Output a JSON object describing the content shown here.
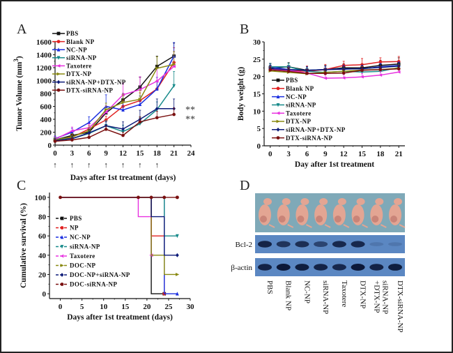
{
  "figure": {
    "panels": [
      "A",
      "B",
      "C",
      "D"
    ]
  },
  "series_colors": {
    "PBS": "#111111",
    "Blank NP": "#e02020",
    "NC-NP": "#1a2ee0",
    "siRNA-NP": "#178a8a",
    "Taxotere": "#e832e0",
    "DTX-NP": "#8a8a12",
    "siRNA-NP+DTX-NP": "#0c1a78",
    "DTX-siRNA-NP": "#7a1010"
  },
  "chart_data": [
    {
      "panel": "A",
      "type": "line",
      "title": "",
      "xlabel": "Days after 1st treatment (days)",
      "ylabel": "Tumor Volume (mm3)",
      "xlim": [
        0,
        24
      ],
      "ylim": [
        0,
        1600
      ],
      "xticks": [
        0,
        3,
        6,
        9,
        12,
        15,
        18,
        21,
        24
      ],
      "yticks": [
        0,
        200,
        400,
        600,
        800,
        1000,
        1200,
        1400,
        1600
      ],
      "treatment_days": [
        0,
        3,
        6,
        9,
        12,
        15,
        18
      ],
      "treatment_marker": "↑",
      "annotations": [
        {
          "text": "**",
          "y": 570
        },
        {
          "text": "**",
          "y": 420
        }
      ],
      "legend": "top-left",
      "x": [
        0,
        3,
        6,
        9,
        12,
        15,
        18,
        21
      ],
      "series": [
        {
          "name": "PBS",
          "marker": "square",
          "values": [
            80,
            150,
            200,
            500,
            700,
            900,
            1220,
            1380
          ],
          "errors": [
            40,
            40,
            50,
            80,
            100,
            150,
            160,
            200
          ]
        },
        {
          "name": "Blank NP",
          "marker": "circle",
          "values": [
            75,
            120,
            250,
            390,
            600,
            690,
            870,
            1280
          ],
          "errors": [
            30,
            40,
            60,
            60,
            90,
            120,
            130,
            230
          ]
        },
        {
          "name": "NC-NP",
          "marker": "triangle-up",
          "values": [
            100,
            200,
            350,
            600,
            545,
            630,
            870,
            1380
          ],
          "errors": [
            40,
            60,
            90,
            180,
            120,
            130,
            180,
            210
          ]
        },
        {
          "name": "siRNA-NP",
          "marker": "triangle-down",
          "values": [
            90,
            100,
            180,
            300,
            210,
            330,
            550,
            920
          ],
          "errors": [
            40,
            40,
            50,
            80,
            100,
            100,
            120,
            220
          ]
        },
        {
          "name": "Taxotere",
          "marker": "triangle-left",
          "values": [
            90,
            220,
            270,
            510,
            780,
            860,
            990,
            1220
          ],
          "errors": [
            40,
            60,
            60,
            100,
            180,
            200,
            200,
            230
          ]
        },
        {
          "name": "DTX-NP",
          "marker": "triangle-right",
          "values": [
            80,
            130,
            220,
            550,
            660,
            710,
            1190,
            1250
          ],
          "errors": [
            30,
            50,
            60,
            100,
            120,
            140,
            180,
            200
          ]
        },
        {
          "name": "siRNA-NP+DTX-NP",
          "marker": "diamond",
          "values": [
            70,
            100,
            190,
            300,
            250,
            400,
            565,
            565
          ],
          "errors": [
            30,
            40,
            50,
            60,
            110,
            140,
            150,
            150
          ]
        },
        {
          "name": "DTX-siRNA-NP",
          "marker": "circle",
          "values": [
            60,
            80,
            120,
            245,
            150,
            360,
            425,
            475
          ],
          "errors": [
            20,
            30,
            40,
            50,
            50,
            80,
            100,
            100
          ]
        }
      ]
    },
    {
      "panel": "B",
      "type": "line",
      "title": "",
      "xlabel": "Day after 1st treatment",
      "ylabel": "Body weight (g)",
      "xlim": [
        -1,
        22
      ],
      "ylim": [
        0,
        30
      ],
      "xticks": [
        0,
        3,
        6,
        9,
        12,
        15,
        18,
        21
      ],
      "yticks": [
        0,
        5,
        10,
        15,
        20,
        25,
        30
      ],
      "legend": "center-left",
      "x": [
        0,
        3,
        6,
        9,
        12,
        15,
        18,
        21
      ],
      "series": [
        {
          "name": "PBS",
          "marker": "square",
          "values": [
            22.5,
            22.8,
            21.8,
            22.0,
            22.5,
            22.5,
            23.2,
            23.6
          ],
          "errors": [
            1.2,
            1.2,
            1.2,
            1.2,
            1.2,
            1.2,
            1.5,
            1.8
          ]
        },
        {
          "name": "Blank NP",
          "marker": "circle",
          "values": [
            22.3,
            21.8,
            21.5,
            22.0,
            23.2,
            23.4,
            24.2,
            24.3
          ],
          "errors": [
            1.5,
            1.2,
            1.5,
            1.5,
            1.2,
            1.8,
            1.2,
            1.5
          ]
        },
        {
          "name": "NC-NP",
          "marker": "triangle-up",
          "values": [
            22.8,
            22.0,
            21.8,
            22.0,
            22.2,
            22.2,
            22.8,
            23.2
          ],
          "errors": [
            1,
            1,
            1,
            1,
            1,
            1,
            1,
            1
          ]
        },
        {
          "name": "siRNA-NP",
          "marker": "triangle-down",
          "values": [
            22.8,
            22.8,
            21.5,
            21.2,
            21.5,
            21.3,
            21.5,
            22.6
          ],
          "errors": [
            1,
            1,
            1,
            1,
            1,
            1,
            1,
            1
          ]
        },
        {
          "name": "Taxotere",
          "marker": "triangle-left",
          "values": [
            22.0,
            21.8,
            21.0,
            19.5,
            19.6,
            19.9,
            20.4,
            21.3
          ],
          "errors": [
            1,
            1,
            1,
            1,
            1,
            1,
            1,
            1
          ]
        },
        {
          "name": "DTX-NP",
          "marker": "triangle-right",
          "values": [
            21.6,
            21.2,
            20.8,
            21.2,
            21.5,
            21.9,
            22.0,
            22.4
          ],
          "errors": [
            1,
            1,
            1,
            1,
            1,
            1,
            1,
            1
          ]
        },
        {
          "name": "siRNA-NP+DTX-NP",
          "marker": "diamond",
          "values": [
            22.3,
            22.0,
            21.8,
            22.0,
            22.1,
            22.3,
            22.6,
            23.0
          ],
          "errors": [
            1,
            1,
            1,
            1,
            1,
            1,
            1,
            1
          ]
        },
        {
          "name": "DTX-siRNA-NP",
          "marker": "circle",
          "values": [
            21.9,
            21.5,
            20.9,
            20.9,
            21.0,
            21.8,
            22.0,
            22.2
          ],
          "errors": [
            1,
            1,
            1,
            1,
            1,
            1,
            1,
            1
          ]
        }
      ]
    },
    {
      "panel": "C",
      "type": "line",
      "subtype": "step",
      "title": "",
      "xlabel": "Days after 1st treatment (days)",
      "ylabel": "Cumulative survival (%)",
      "xlim": [
        -2.5,
        30
      ],
      "ylim": [
        -5,
        105
      ],
      "xticks": [
        0,
        5,
        10,
        15,
        20,
        25,
        30
      ],
      "yticks": [
        0,
        20,
        40,
        60,
        80,
        100
      ],
      "legend": "center-left",
      "series": [
        {
          "name": "PBS",
          "marker": "square",
          "points": [
            [
              0,
              100
            ],
            [
              21,
              100
            ],
            [
              21,
              0
            ],
            [
              24,
              0
            ]
          ]
        },
        {
          "name": "NP",
          "marker": "circle",
          "points": [
            [
              0,
              100
            ],
            [
              21,
              100
            ],
            [
              21,
              60
            ],
            [
              24,
              60
            ],
            [
              24,
              0
            ]
          ]
        },
        {
          "name": "NC-NP",
          "marker": "triangle-up",
          "points": [
            [
              0,
              100
            ],
            [
              24,
              100
            ],
            [
              24,
              0
            ],
            [
              27,
              0
            ]
          ]
        },
        {
          "name": "siRNA-NP",
          "marker": "triangle-down",
          "points": [
            [
              0,
              100
            ],
            [
              24,
              100
            ],
            [
              24,
              60
            ],
            [
              27,
              60
            ]
          ]
        },
        {
          "name": "Taxotere",
          "marker": "triangle-left",
          "points": [
            [
              0,
              100
            ],
            [
              18,
              100
            ],
            [
              18,
              80
            ],
            [
              21,
              80
            ],
            [
              21,
              40
            ]
          ]
        },
        {
          "name": "DOC-NP",
          "marker": "triangle-right",
          "points": [
            [
              0,
              100
            ],
            [
              21,
              100
            ],
            [
              21,
              40
            ],
            [
              24,
              40
            ],
            [
              24,
              20
            ],
            [
              27,
              20
            ]
          ]
        },
        {
          "name": "DOC-NP+siRNA-NP",
          "marker": "diamond",
          "points": [
            [
              0,
              100
            ],
            [
              21,
              100
            ],
            [
              21,
              80
            ],
            [
              24,
              80
            ],
            [
              24,
              40
            ],
            [
              27,
              40
            ]
          ]
        },
        {
          "name": "DOC-siRNA-NP",
          "marker": "circle",
          "points": [
            [
              0,
              100
            ],
            [
              18,
              100
            ],
            [
              21,
              100
            ],
            [
              24,
              100
            ],
            [
              27,
              100
            ]
          ]
        }
      ]
    }
  ],
  "legend_labels_C": [
    "PBS",
    "NP",
    "NC-NP",
    "siRNA-NP",
    "Taxotere",
    "DOC-NP",
    "DOC-NP+siRNA-NP",
    "DOC-siRNA-NP"
  ],
  "panel_D": {
    "blot_rows": [
      {
        "label": "Bcl-2",
        "intensities": [
          0.9,
          0.75,
          0.8,
          0.6,
          0.85,
          0.85,
          0.15,
          0.1
        ]
      },
      {
        "label": "β-actin",
        "intensities": [
          0.9,
          1.0,
          0.95,
          0.9,
          0.85,
          1.0,
          0.9,
          0.95
        ]
      }
    ],
    "lanes": [
      "PBS",
      "Blank NP",
      "NC-NP",
      "siRNA-NP",
      "Taxotere",
      "DTX-NP",
      "siRNA-NP +DTX-NP",
      "DTX-siRNA-NP"
    ],
    "photo_description": "mice photo",
    "photo_bg": "#7fa9b8",
    "blot_bg": "#5b87c2",
    "mouse_color": "#e3a593"
  }
}
